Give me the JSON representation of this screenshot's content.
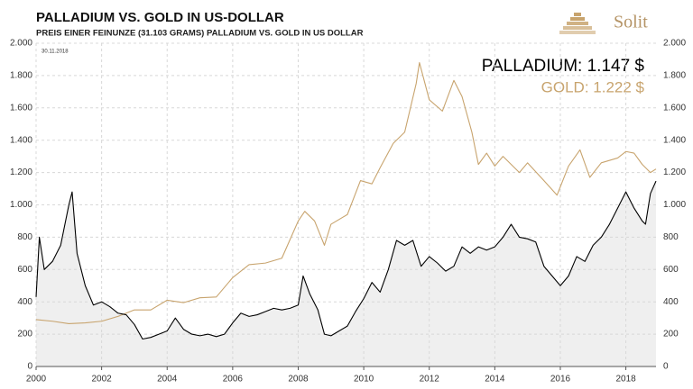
{
  "chart_data": {
    "type": "line",
    "title": "PALLADIUM  VS. GOLD IN  US-DOLLAR",
    "subtitle": "PREIS EINER FEINUNZE (31.103 GRAMS) PALLADIUM VS. GOLD IN US DOLLAR",
    "date_label": "30.11.2018",
    "logo": "Solit",
    "annotations": [
      "PALLADIUM: 1.147 $",
      "GOLD: 1.222 $"
    ],
    "xlim": [
      2000,
      2018.92
    ],
    "xticks": [
      2000,
      2002,
      2004,
      2006,
      2008,
      2010,
      2012,
      2014,
      2016,
      2018
    ],
    "ylim": [
      0,
      2000
    ],
    "yticks": [
      {
        "value": 0,
        "label": "0"
      },
      {
        "value": 200,
        "label": "200"
      },
      {
        "value": 400,
        "label": "400"
      },
      {
        "value": 600,
        "label": "600"
      },
      {
        "value": 800,
        "label": "800"
      },
      {
        "value": 1000,
        "label": "1.000"
      },
      {
        "value": 1200,
        "label": "1.200"
      },
      {
        "value": 1400,
        "label": "1.400"
      },
      {
        "value": 1600,
        "label": "1.600"
      },
      {
        "value": 1800,
        "label": "1.800"
      },
      {
        "value": 2000,
        "label": "2.000"
      }
    ],
    "grid": true,
    "series": [
      {
        "name": "Palladium",
        "color": "#000000",
        "fill": "#efefef",
        "x": [
          2000.0,
          2000.1,
          2000.25,
          2000.5,
          2000.75,
          2001.0,
          2001.1,
          2001.25,
          2001.5,
          2001.75,
          2002.0,
          2002.25,
          2002.5,
          2002.75,
          2003.0,
          2003.25,
          2003.5,
          2003.75,
          2004.0,
          2004.25,
          2004.5,
          2004.75,
          2005.0,
          2005.25,
          2005.5,
          2005.75,
          2006.0,
          2006.25,
          2006.5,
          2006.75,
          2007.0,
          2007.25,
          2007.5,
          2007.75,
          2008.0,
          2008.15,
          2008.35,
          2008.6,
          2008.8,
          2009.0,
          2009.25,
          2009.5,
          2009.75,
          2010.0,
          2010.25,
          2010.5,
          2010.75,
          2011.0,
          2011.25,
          2011.5,
          2011.75,
          2012.0,
          2012.25,
          2012.5,
          2012.75,
          2013.0,
          2013.25,
          2013.5,
          2013.75,
          2014.0,
          2014.25,
          2014.5,
          2014.75,
          2015.0,
          2015.25,
          2015.5,
          2015.75,
          2016.0,
          2016.25,
          2016.5,
          2016.75,
          2017.0,
          2017.25,
          2017.5,
          2017.75,
          2018.0,
          2018.25,
          2018.5,
          2018.6,
          2018.75,
          2018.92
        ],
        "values": [
          430,
          800,
          600,
          650,
          750,
          1000,
          1080,
          700,
          500,
          380,
          400,
          370,
          330,
          320,
          260,
          170,
          180,
          200,
          220,
          300,
          230,
          200,
          190,
          200,
          185,
          200,
          270,
          330,
          310,
          320,
          340,
          360,
          350,
          360,
          380,
          560,
          450,
          350,
          200,
          190,
          220,
          250,
          340,
          420,
          520,
          460,
          600,
          780,
          750,
          780,
          620,
          680,
          640,
          590,
          620,
          740,
          700,
          740,
          720,
          740,
          800,
          880,
          800,
          790,
          770,
          620,
          560,
          500,
          560,
          680,
          650,
          750,
          800,
          880,
          980,
          1080,
          980,
          900,
          880,
          1070,
          1147
        ]
      },
      {
        "name": "Gold",
        "color": "#c8a46e",
        "x": [
          2000.0,
          2000.5,
          2001.0,
          2001.5,
          2002.0,
          2002.5,
          2003.0,
          2003.5,
          2004.0,
          2004.5,
          2005.0,
          2005.5,
          2006.0,
          2006.5,
          2007.0,
          2007.5,
          2008.0,
          2008.2,
          2008.5,
          2008.8,
          2009.0,
          2009.5,
          2009.9,
          2010.25,
          2010.5,
          2010.9,
          2011.25,
          2011.6,
          2011.7,
          2012.0,
          2012.4,
          2012.75,
          2013.0,
          2013.3,
          2013.5,
          2013.75,
          2014.0,
          2014.25,
          2014.75,
          2015.0,
          2015.5,
          2015.9,
          2016.25,
          2016.6,
          2016.9,
          2017.25,
          2017.75,
          2018.0,
          2018.25,
          2018.5,
          2018.75,
          2018.92
        ],
        "values": [
          290,
          280,
          265,
          270,
          280,
          310,
          350,
          350,
          410,
          395,
          425,
          430,
          550,
          630,
          640,
          670,
          900,
          960,
          900,
          750,
          880,
          940,
          1150,
          1130,
          1230,
          1380,
          1450,
          1750,
          1880,
          1650,
          1580,
          1770,
          1670,
          1450,
          1250,
          1320,
          1240,
          1300,
          1200,
          1260,
          1150,
          1060,
          1240,
          1340,
          1170,
          1260,
          1290,
          1330,
          1320,
          1250,
          1200,
          1222
        ]
      }
    ]
  }
}
